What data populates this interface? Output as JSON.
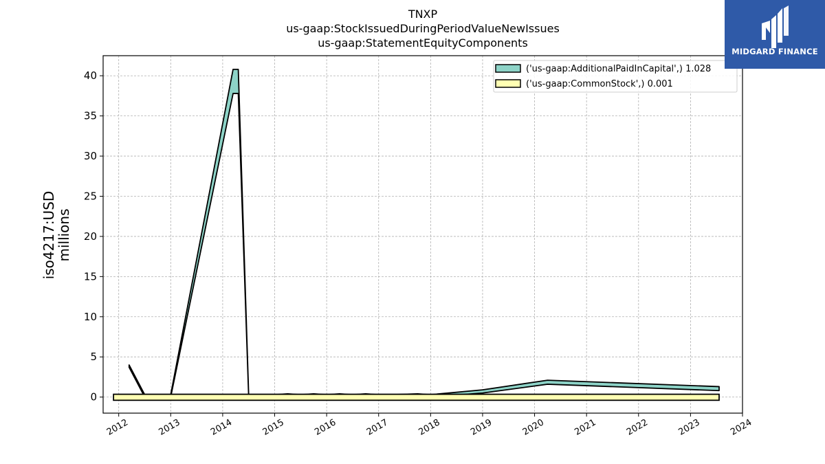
{
  "brand": {
    "name": "MIDGARD FINANCE",
    "logo_icon": "midgard-m-icon",
    "color": "#2f5aa8"
  },
  "chart_data": {
    "type": "area",
    "title_lines": [
      "TNXP",
      "us-gaap:StockIssuedDuringPeriodValueNewIssues",
      "us-gaap:StatementEquityComponents"
    ],
    "ylabel_lines": [
      "iso4217:USD",
      "millions"
    ],
    "xlabel": "",
    "xlim": [
      2011.7,
      2024.0
    ],
    "ylim": [
      -2,
      42.5
    ],
    "x_ticks": [
      "2012",
      "2013",
      "2014",
      "2015",
      "2016",
      "2017",
      "2018",
      "2019",
      "2020",
      "2021",
      "2022",
      "2023",
      "2024"
    ],
    "y_ticks": [
      "0",
      "5",
      "10",
      "15",
      "20",
      "25",
      "30",
      "35",
      "40"
    ],
    "grid": true,
    "legend_position": "top-right",
    "series": [
      {
        "name": "('us-gaap:AdditionalPaidInCapital',) 1.028",
        "color": "#8dd3c7",
        "top": [
          [
            2012.2,
            4.0
          ],
          [
            2012.5,
            0.3
          ],
          [
            2013.0,
            0.3
          ],
          [
            2014.2,
            40.8
          ],
          [
            2014.3,
            40.8
          ],
          [
            2014.5,
            0.3
          ],
          [
            2015.0,
            0.3
          ],
          [
            2015.25,
            0.4
          ],
          [
            2015.5,
            0.3
          ],
          [
            2015.75,
            0.4
          ],
          [
            2016.0,
            0.3
          ],
          [
            2016.25,
            0.4
          ],
          [
            2016.5,
            0.3
          ],
          [
            2016.75,
            0.4
          ],
          [
            2017.0,
            0.3
          ],
          [
            2017.25,
            0.3
          ],
          [
            2017.75,
            0.4
          ],
          [
            2018.0,
            0.3
          ],
          [
            2019.0,
            0.9
          ],
          [
            2020.25,
            2.1
          ],
          [
            2023.55,
            1.3
          ]
        ],
        "bottom": [
          [
            2012.2,
            3.7
          ],
          [
            2012.5,
            0.0
          ],
          [
            2013.0,
            0.0
          ],
          [
            2014.2,
            37.8
          ],
          [
            2014.3,
            37.8
          ],
          [
            2014.5,
            0.0
          ],
          [
            2015.0,
            0.0
          ],
          [
            2018.0,
            0.0
          ],
          [
            2019.0,
            0.5
          ],
          [
            2020.25,
            1.6
          ],
          [
            2023.55,
            0.8
          ]
        ]
      },
      {
        "name": "('us-gaap:CommonStock',) 0.001",
        "color": "#ffffb3",
        "x": [
          2011.9,
          2023.55
        ],
        "lower": [
          -0.4,
          -0.4
        ],
        "upper": [
          0.35,
          0.35
        ]
      }
    ]
  }
}
